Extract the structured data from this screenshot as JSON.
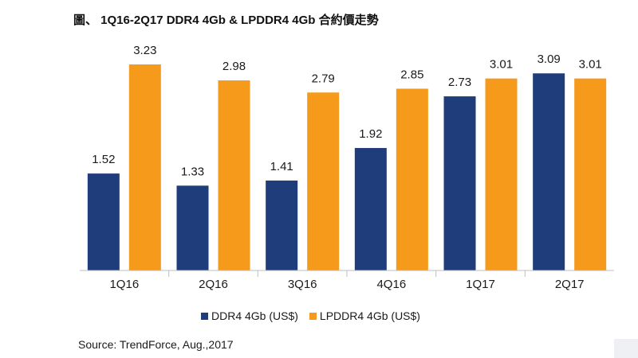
{
  "chart_data": {
    "type": "bar",
    "title": "圖、 1Q16-2Q17 DDR4 4Gb & LPDDR4 4Gb 合約價走勢",
    "categories": [
      "1Q16",
      "2Q16",
      "3Q16",
      "4Q16",
      "1Q17",
      "2Q17"
    ],
    "series": [
      {
        "name": "DDR4 4Gb (US$)",
        "color": "#1f3d7a",
        "values": [
          1.52,
          1.33,
          1.41,
          1.92,
          2.73,
          3.09
        ],
        "labels": [
          "1.52",
          "1.33",
          "1.41",
          "1.92",
          "2.73",
          "3.09"
        ]
      },
      {
        "name": "LPDDR4 4Gb (US$)",
        "color": "#f59a1b",
        "values": [
          3.23,
          2.98,
          2.79,
          2.85,
          3.01,
          3.01
        ],
        "labels": [
          "3.23",
          "2.98",
          "2.79",
          "2.85",
          "3.01",
          "3.01"
        ]
      }
    ],
    "ylim": [
      0,
      3.23
    ],
    "xlabel": "",
    "ylabel": "",
    "grid": false,
    "legend_position": "bottom"
  },
  "source": "Source: TrendForce, Aug.,2017"
}
